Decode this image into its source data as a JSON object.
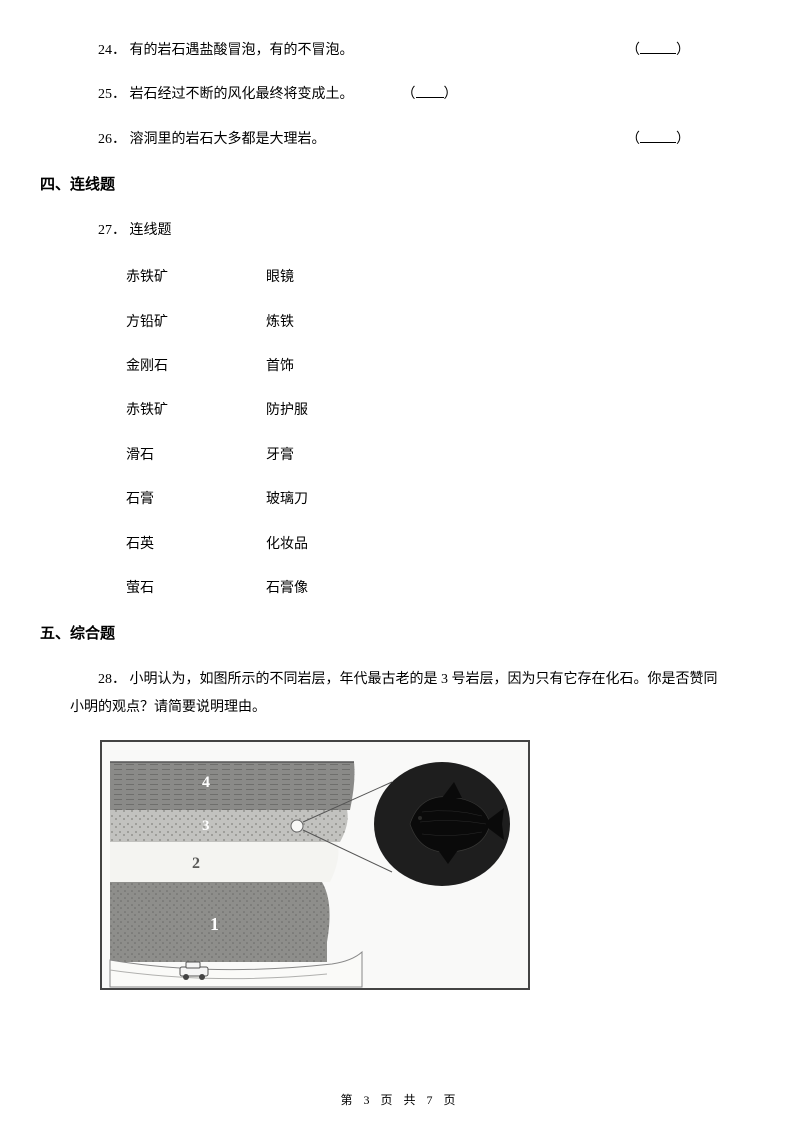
{
  "q24": {
    "num": "24．",
    "text": "有的岩石遇盐酸冒泡，有的不冒泡。"
  },
  "q25": {
    "num": "25．",
    "text": "岩石经过不断的风化最终将变成土。"
  },
  "q26": {
    "num": "26．",
    "text": "溶洞里的岩石大多都是大理岩。"
  },
  "section4": "四、连线题",
  "q27": {
    "num": "27．",
    "text": "连线题"
  },
  "matches": [
    {
      "left": "赤铁矿",
      "right": "眼镜"
    },
    {
      "left": "方铅矿",
      "right": "炼铁"
    },
    {
      "left": "金刚石",
      "right": "首饰"
    },
    {
      "left": "赤铁矿",
      "right": "防护服"
    },
    {
      "left": "滑石",
      "right": "牙膏"
    },
    {
      "left": "石膏",
      "right": "玻璃刀"
    },
    {
      "left": "石英",
      "right": "化妆品"
    },
    {
      "left": "萤石",
      "right": "石膏像"
    }
  ],
  "section5": "五、综合题",
  "q28": {
    "num": "28．",
    "text": "小明认为，如图所示的不同岩层，年代最古老的是 3 号岩层，因为只有它存在化石。你是否赞同小明的观点？请简要说明理由。"
  },
  "diagram": {
    "layers": [
      "4",
      "3",
      "2",
      "1"
    ],
    "colors": {
      "layer4_fill": "#8a8a88",
      "layer4_stripe": "#6e6e6c",
      "layer3_fill": "#c2c2bf",
      "layer3_dot": "#848480",
      "layer2_fill": "#f4f4f1",
      "layer1_fill": "#8e8e8b",
      "layer1_dot": "#6a6a67",
      "road": "#fafaf8",
      "fossil_circle": "#1e1e1e",
      "fossil_body": "#0a0a0a",
      "label_text": "#ffffff",
      "border": "#444444"
    }
  },
  "footer": {
    "left": "第",
    "page": "3",
    "mid": "页 共",
    "total": "7",
    "right": "页"
  }
}
